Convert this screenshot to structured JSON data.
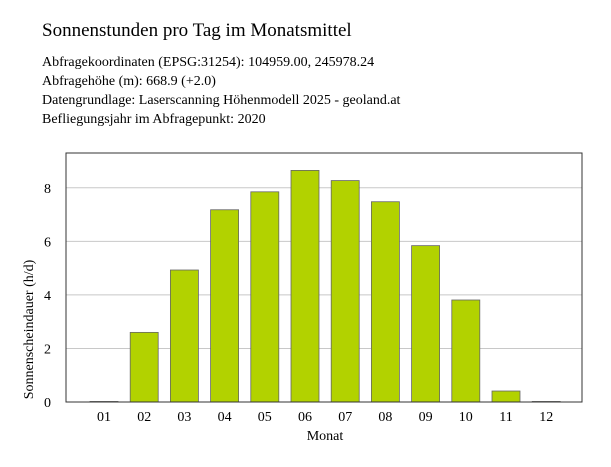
{
  "header": {
    "title": "Sonnenstunden pro Tag im Monatsmittel",
    "lines": [
      "Abfragekoordinaten (EPSG:31254): 104959.00, 245978.24",
      "Abfragehöhe (m): 668.9 (+2.0)",
      "Datengrundlage: Laserscanning Höhenmodell 2025 - geoland.at",
      "Befliegungsjahr im Abfragepunkt: 2020"
    ]
  },
  "chart_data": {
    "type": "bar",
    "categories": [
      "01",
      "02",
      "03",
      "04",
      "05",
      "06",
      "07",
      "08",
      "09",
      "10",
      "11",
      "12"
    ],
    "values": [
      0.02,
      2.6,
      4.93,
      7.18,
      7.85,
      8.65,
      8.27,
      7.48,
      5.84,
      3.81,
      0.41,
      0.02
    ],
    "xlabel": "Monat",
    "ylabel": "Sonnenscheindauer (h/d)",
    "ylim": [
      0,
      9.3
    ],
    "yticks": [
      0,
      2,
      4,
      6,
      8
    ],
    "grid": "horizontal",
    "bar_color": "#b2d200",
    "bar_edge_color": "#666666"
  }
}
